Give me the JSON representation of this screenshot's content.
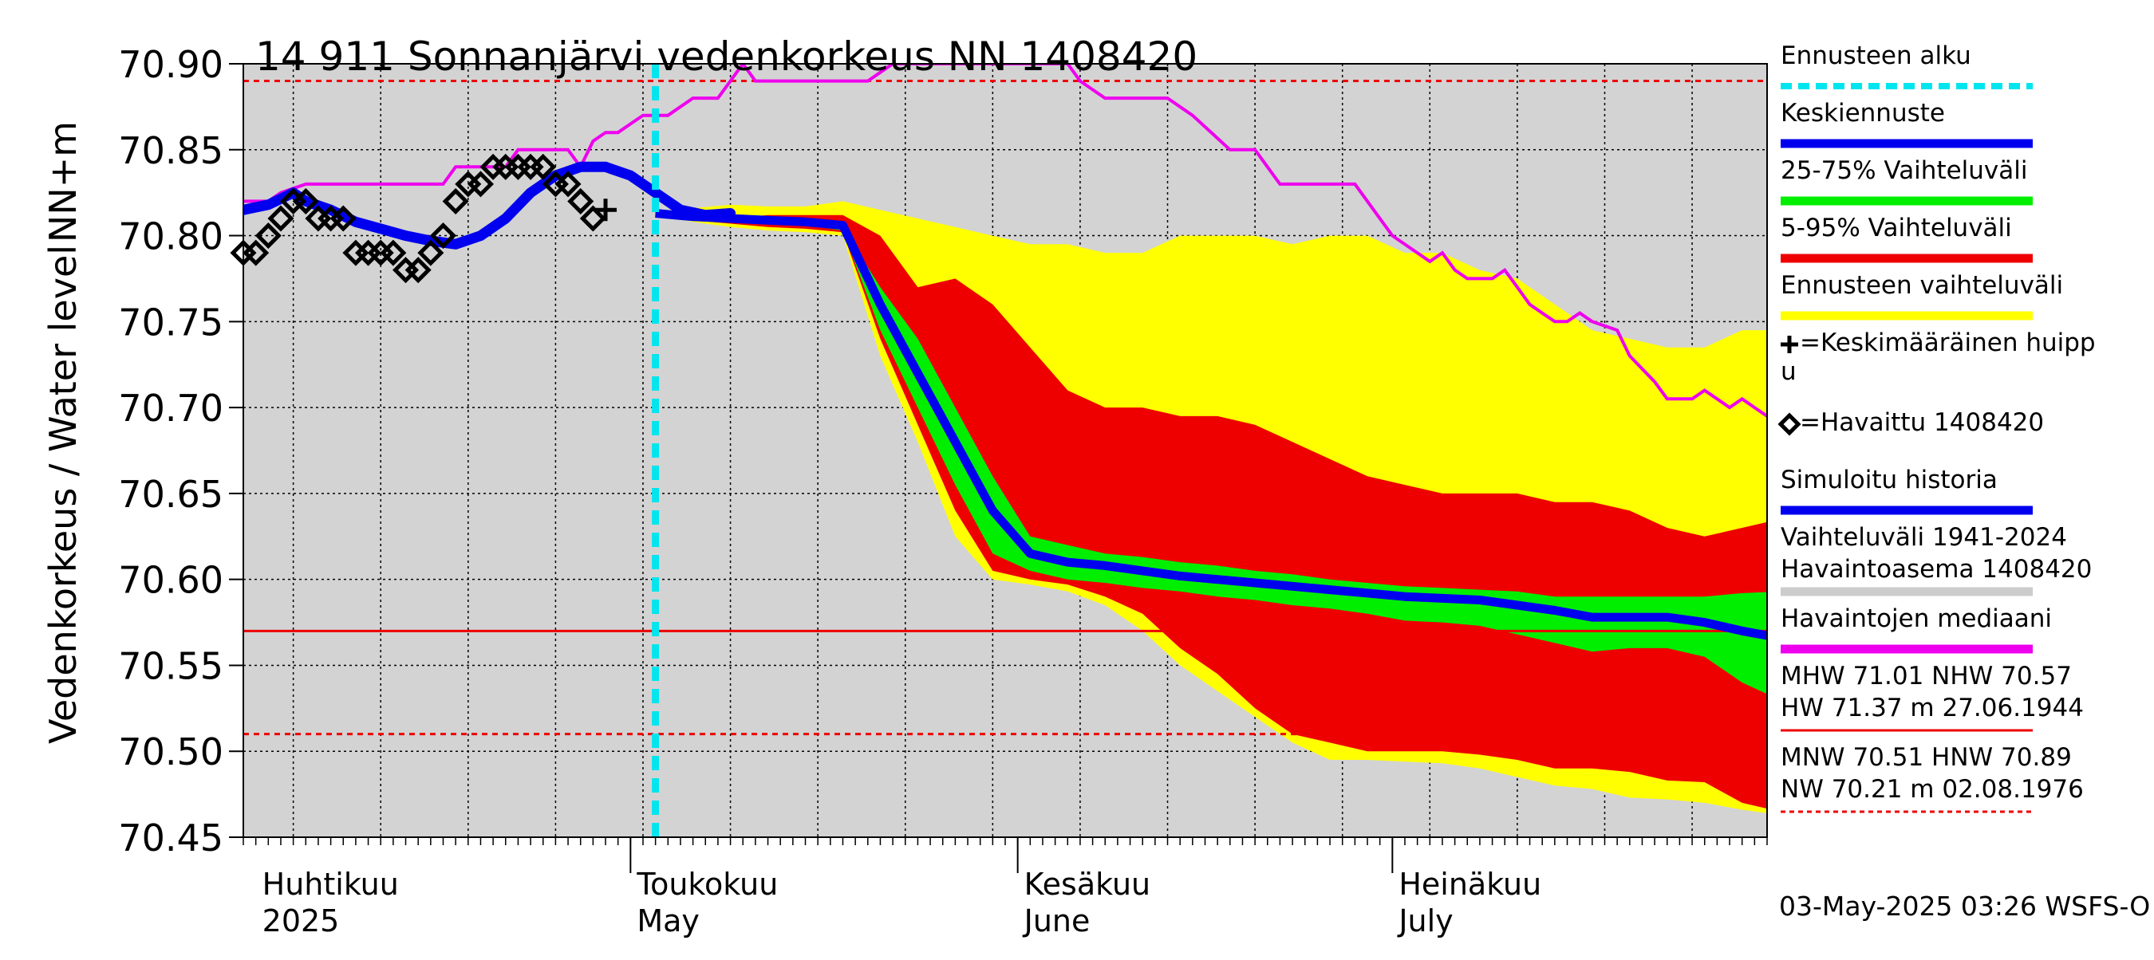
{
  "chart_data": {
    "type": "area",
    "title": "14 911 Sonnanjärvi vedenkorkeus NN 1408420",
    "ylabel": "Vedenkorkeus / Water level",
    "yunit": "NN+m",
    "ylim": [
      70.45,
      70.9
    ],
    "yticks": [
      "70.90",
      "70.85",
      "70.80",
      "70.75",
      "70.70",
      "70.65",
      "70.60",
      "70.55",
      "70.50",
      "70.45"
    ],
    "xlim": [
      "2025-03-31",
      "2025-07-31"
    ],
    "x_month_labels": [
      {
        "date": "2025-04-01",
        "fi": "Huhtikuu",
        "en": "2025"
      },
      {
        "date": "2025-05-01",
        "fi": "Toukokuu",
        "en": "May"
      },
      {
        "date": "2025-06-01",
        "fi": "Kesäkuu",
        "en": "June"
      },
      {
        "date": "2025-07-01",
        "fi": "Heinäkuu",
        "en": "July"
      }
    ],
    "forecast_start": "2025-05-03",
    "footer": "03-May-2025 03:26 WSFS-O",
    "grid": true,
    "legend": {
      "position": "right",
      "items": [
        {
          "label": "Ennusteen alku",
          "color": "#00e5ee",
          "style": "dashed"
        },
        {
          "label": "Keskiennuste",
          "color": "#0000ee",
          "style": "line"
        },
        {
          "label": "25-75% Vaihteluväli",
          "color": "#00ee00",
          "style": "band"
        },
        {
          "label": "5-95% Vaihteluväli",
          "color": "#ee0000",
          "style": "band"
        },
        {
          "label": "Ennusteen vaihteluväli",
          "color": "#ffff00",
          "style": "band"
        },
        {
          "label": "=Keskimääräinen huipp",
          "label2": "u",
          "color": "#000000",
          "style": "plus"
        },
        {
          "label": "=Havaittu 1408420",
          "color": "#000000",
          "style": "diamond"
        },
        {
          "label": "Simuloitu historia",
          "color": "#0000ee",
          "style": "line"
        },
        {
          "label": "Vaihteluväli 1941-2024",
          "label2": " Havaintoasema 1408420",
          "color": "#cccccc",
          "style": "band"
        },
        {
          "label": "Havaintojen mediaani",
          "color": "#ee00ee",
          "style": "line"
        },
        {
          "label": "MHW  71.01 NHW  70.57",
          "label2": "HW  71.37 m 27.06.1944",
          "color": "#ee0000",
          "style": "solid"
        },
        {
          "label": "MNW  70.51 HNW  70.89",
          "label2": "NW  70.21 m 02.08.1976",
          "color": "#ee0000",
          "style": "dotted"
        }
      ]
    },
    "reference_lines": [
      {
        "name": "NHW",
        "value": 70.57,
        "style": "solid",
        "color": "#ee0000"
      },
      {
        "name": "HNW",
        "value": 70.89,
        "style": "dotted",
        "color": "#ee0000"
      },
      {
        "name": "MNW",
        "value": 70.51,
        "style": "dotted",
        "color": "#ee0000"
      }
    ],
    "colors": {
      "history_band": "#d3d3d3",
      "forecast_range": "#ffff00",
      "band_5_95": "#ee0000",
      "band_25_75": "#00ee00",
      "median_forecast": "#0000ee",
      "simulated_history": "#0000ee",
      "observed_median": "#ee00ee",
      "forecast_start_line": "#00e5ee"
    },
    "history_band_bottom": [
      [
        "2025-05-16",
        70.45
      ],
      [
        "2025-05-17",
        70.445
      ],
      [
        "2025-05-19",
        70.436
      ],
      [
        "2025-05-20",
        70.436
      ],
      [
        "2025-05-28",
        70.436
      ],
      [
        "2025-05-30",
        70.445
      ],
      [
        "2025-06-03",
        70.445
      ],
      [
        "2025-06-06",
        70.445
      ],
      [
        "2025-06-08",
        70.436
      ],
      [
        "2025-06-14",
        70.436
      ],
      [
        "2025-06-15",
        70.445
      ],
      [
        "2025-06-18",
        70.45
      ]
    ],
    "observed_median": [
      [
        "2025-03-31",
        70.82
      ],
      [
        "2025-04-02",
        70.82
      ],
      [
        "2025-04-03",
        70.825
      ],
      [
        "2025-04-05",
        70.83
      ],
      [
        "2025-04-16",
        70.83
      ],
      [
        "2025-04-17",
        70.84
      ],
      [
        "2025-04-21",
        70.84
      ],
      [
        "2025-04-22",
        70.85
      ],
      [
        "2025-04-26",
        70.85
      ],
      [
        "2025-04-27",
        70.84
      ],
      [
        "2025-04-28",
        70.855
      ],
      [
        "2025-04-29",
        70.86
      ],
      [
        "2025-04-30",
        70.86
      ],
      [
        "2025-05-01",
        70.865
      ],
      [
        "2025-05-02",
        70.87
      ],
      [
        "2025-05-04",
        70.87
      ],
      [
        "2025-05-06",
        70.88
      ],
      [
        "2025-05-08",
        70.88
      ],
      [
        "2025-05-09",
        70.89
      ],
      [
        "2025-05-10",
        70.9
      ],
      [
        "2025-05-11",
        70.89
      ],
      [
        "2025-05-20",
        70.89
      ],
      [
        "2025-05-21",
        70.895
      ],
      [
        "2025-05-22",
        70.9
      ],
      [
        "2025-05-23",
        70.9
      ],
      [
        "2025-06-05",
        70.9
      ],
      [
        "2025-06-06",
        70.89
      ],
      [
        "2025-06-08",
        70.88
      ],
      [
        "2025-06-13",
        70.88
      ],
      [
        "2025-06-15",
        70.87
      ],
      [
        "2025-06-18",
        70.85
      ],
      [
        "2025-06-20",
        70.85
      ],
      [
        "2025-06-22",
        70.83
      ],
      [
        "2025-06-24",
        70.83
      ],
      [
        "2025-06-28",
        70.83
      ],
      [
        "2025-07-01",
        70.8
      ],
      [
        "2025-07-03",
        70.79
      ],
      [
        "2025-07-04",
        70.785
      ],
      [
        "2025-07-05",
        70.79
      ],
      [
        "2025-07-06",
        70.78
      ],
      [
        "2025-07-07",
        70.775
      ],
      [
        "2025-07-09",
        70.775
      ],
      [
        "2025-07-10",
        70.78
      ],
      [
        "2025-07-11",
        70.77
      ],
      [
        "2025-07-12",
        70.76
      ],
      [
        "2025-07-13",
        70.755
      ],
      [
        "2025-07-14",
        70.75
      ],
      [
        "2025-07-15",
        70.75
      ],
      [
        "2025-07-16",
        70.755
      ],
      [
        "2025-07-17",
        70.75
      ],
      [
        "2025-07-19",
        70.745
      ],
      [
        "2025-07-20",
        70.73
      ],
      [
        "2025-07-22",
        70.715
      ],
      [
        "2025-07-23",
        70.705
      ],
      [
        "2025-07-25",
        70.705
      ],
      [
        "2025-07-26",
        70.71
      ],
      [
        "2025-07-27",
        70.705
      ],
      [
        "2025-07-28",
        70.7
      ],
      [
        "2025-07-29",
        70.705
      ],
      [
        "2025-07-30",
        70.7
      ],
      [
        "2025-07-31",
        70.695
      ],
      [
        "2025-08-03",
        70.695
      ],
      [
        "2025-08-04",
        70.685
      ],
      [
        "2025-08-05",
        70.685
      ],
      [
        "2025-08-06",
        70.675
      ],
      [
        "2025-08-07",
        70.67
      ]
    ],
    "simulated_history": [
      [
        "2025-03-31",
        70.815
      ],
      [
        "2025-04-02",
        70.818
      ],
      [
        "2025-04-04",
        70.825
      ],
      [
        "2025-04-05",
        70.82
      ],
      [
        "2025-04-07",
        70.815
      ],
      [
        "2025-04-09",
        70.808
      ],
      [
        "2025-04-11",
        70.804
      ],
      [
        "2025-04-13",
        70.8
      ],
      [
        "2025-04-15",
        70.797
      ],
      [
        "2025-04-17",
        70.795
      ],
      [
        "2025-04-19",
        70.8
      ],
      [
        "2025-04-21",
        70.81
      ],
      [
        "2025-04-23",
        70.825
      ],
      [
        "2025-04-25",
        70.835
      ],
      [
        "2025-04-27",
        70.84
      ],
      [
        "2025-04-29",
        70.84
      ],
      [
        "2025-05-01",
        70.835
      ],
      [
        "2025-05-03",
        70.825
      ],
      [
        "2025-05-05",
        70.815
      ],
      [
        "2025-05-07",
        70.812
      ],
      [
        "2025-05-09",
        70.813
      ]
    ],
    "observed": [
      [
        "2025-03-31",
        70.79
      ],
      [
        "2025-04-01",
        70.79
      ],
      [
        "2025-04-02",
        70.8
      ],
      [
        "2025-04-03",
        70.81
      ],
      [
        "2025-04-04",
        70.82
      ],
      [
        "2025-04-05",
        70.82
      ],
      [
        "2025-04-06",
        70.81
      ],
      [
        "2025-04-07",
        70.81
      ],
      [
        "2025-04-08",
        70.81
      ],
      [
        "2025-04-09",
        70.79
      ],
      [
        "2025-04-10",
        70.79
      ],
      [
        "2025-04-11",
        70.79
      ],
      [
        "2025-04-12",
        70.79
      ],
      [
        "2025-04-13",
        70.78
      ],
      [
        "2025-04-14",
        70.78
      ],
      [
        "2025-04-15",
        70.79
      ],
      [
        "2025-04-16",
        70.8
      ],
      [
        "2025-04-17",
        70.82
      ],
      [
        "2025-04-18",
        70.83
      ],
      [
        "2025-04-19",
        70.83
      ],
      [
        "2025-04-20",
        70.84
      ],
      [
        "2025-04-21",
        70.84
      ],
      [
        "2025-04-22",
        70.84
      ],
      [
        "2025-04-23",
        70.84
      ],
      [
        "2025-04-24",
        70.84
      ],
      [
        "2025-04-25",
        70.83
      ],
      [
        "2025-04-26",
        70.83
      ],
      [
        "2025-04-27",
        70.82
      ],
      [
        "2025-04-28",
        70.81
      ]
    ],
    "mean_peak": {
      "x": "2025-04-29",
      "y": 70.815
    },
    "forecast": {
      "x": [
        "2025-05-03",
        "2025-05-06",
        "2025-05-09",
        "2025-05-12",
        "2025-05-15",
        "2025-05-18",
        "2025-05-21",
        "2025-05-24",
        "2025-05-27",
        "2025-05-30",
        "2025-06-02",
        "2025-06-05",
        "2025-06-08",
        "2025-06-11",
        "2025-06-14",
        "2025-06-17",
        "2025-06-20",
        "2025-06-23",
        "2025-06-26",
        "2025-06-29",
        "2025-07-02",
        "2025-07-05",
        "2025-07-08",
        "2025-07-11",
        "2025-07-14",
        "2025-07-17",
        "2025-07-20",
        "2025-07-23",
        "2025-07-26",
        "2025-07-29",
        "2025-08-01"
      ],
      "range_max": [
        70.814,
        70.816,
        70.818,
        70.817,
        70.817,
        70.82,
        70.815,
        70.81,
        70.805,
        70.8,
        70.795,
        70.795,
        70.79,
        70.79,
        70.8,
        70.8,
        70.8,
        70.795,
        70.8,
        70.8,
        70.79,
        70.79,
        70.78,
        70.775,
        70.76,
        70.745,
        70.74,
        70.735,
        70.735,
        70.745,
        70.745
      ],
      "p95": [
        70.814,
        70.815,
        70.81,
        70.812,
        70.812,
        70.812,
        70.8,
        70.77,
        70.775,
        70.76,
        70.735,
        70.71,
        70.7,
        70.7,
        70.695,
        70.695,
        70.69,
        70.68,
        70.67,
        70.66,
        70.655,
        70.65,
        70.65,
        70.65,
        70.645,
        70.645,
        70.64,
        70.63,
        70.625,
        70.63,
        70.635
      ],
      "p75": [
        70.813,
        70.813,
        70.811,
        70.81,
        70.809,
        70.805,
        70.77,
        70.74,
        70.7,
        70.66,
        70.625,
        70.62,
        70.615,
        70.613,
        70.61,
        70.608,
        70.605,
        70.603,
        70.6,
        70.598,
        70.596,
        70.595,
        70.594,
        70.593,
        70.59,
        70.59,
        70.59,
        70.59,
        70.59,
        70.592,
        70.593
      ],
      "median": [
        70.813,
        70.811,
        70.81,
        70.809,
        70.808,
        70.806,
        70.76,
        70.72,
        70.68,
        70.64,
        70.615,
        70.61,
        70.608,
        70.605,
        70.602,
        70.6,
        70.598,
        70.596,
        70.594,
        70.592,
        70.59,
        70.589,
        70.588,
        70.585,
        70.582,
        70.578,
        70.578,
        70.578,
        70.575,
        70.57,
        70.566
      ],
      "p25": [
        70.813,
        70.81,
        70.809,
        70.807,
        70.806,
        70.803,
        70.745,
        70.7,
        70.655,
        70.615,
        70.605,
        70.6,
        70.598,
        70.595,
        70.593,
        70.59,
        70.588,
        70.585,
        70.583,
        70.58,
        70.576,
        70.575,
        70.573,
        70.568,
        70.563,
        70.558,
        70.56,
        70.56,
        70.555,
        70.54,
        70.53
      ],
      "p5": [
        70.812,
        70.809,
        70.807,
        70.805,
        70.804,
        70.802,
        70.74,
        70.69,
        70.64,
        70.605,
        70.6,
        70.597,
        70.59,
        70.58,
        70.56,
        70.545,
        70.525,
        70.51,
        70.505,
        70.5,
        70.5,
        70.5,
        70.498,
        70.495,
        70.49,
        70.49,
        70.488,
        70.483,
        70.482,
        70.47,
        70.465
      ],
      "range_min": [
        70.812,
        70.808,
        70.805,
        70.803,
        70.802,
        70.8,
        70.73,
        70.68,
        70.625,
        70.6,
        70.597,
        70.593,
        70.585,
        70.57,
        70.55,
        70.535,
        70.52,
        70.505,
        70.495,
        70.495,
        70.494,
        70.493,
        70.49,
        70.485,
        70.48,
        70.478,
        70.473,
        70.472,
        70.47,
        70.466,
        70.463
      ]
    }
  }
}
